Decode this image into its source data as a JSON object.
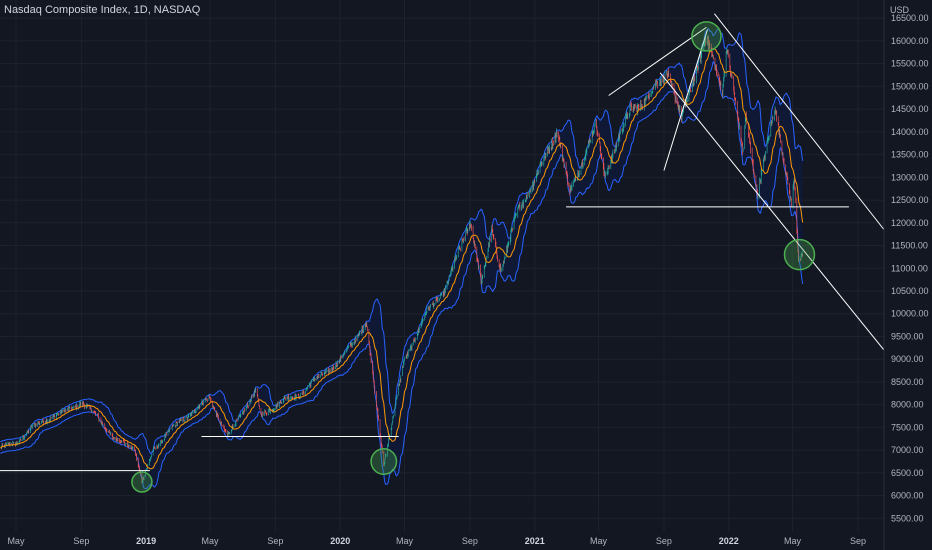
{
  "header": {
    "title": "Nasdaq Composite Index, 1D, NASDAQ"
  },
  "colors": {
    "background": "#131722",
    "grid": "#1e222d",
    "up_candle": "#26a69a",
    "down_candle": "#ef5350",
    "bands": "#2962ff",
    "band_fill": "#0f1a3a",
    "ma": "#ff9800",
    "drawing": "#ffffff",
    "highlight_circle": "#4caf50"
  },
  "chart_data": {
    "type": "line",
    "y_axis": {
      "unit": "USD",
      "ylim": [
        5200,
        16900
      ],
      "ticks": [
        5500,
        6000,
        6500,
        7000,
        7500,
        8000,
        8500,
        9000,
        9500,
        10000,
        10500,
        11000,
        11500,
        12000,
        12500,
        13000,
        13500,
        14000,
        14500,
        15000,
        15500,
        16000,
        16500
      ],
      "tick_labels": [
        "5500.00",
        "6000.00",
        "6500.00",
        "7000.00",
        "7500.00",
        "8000.00",
        "8500.00",
        "9000.00",
        "9500.00",
        "10000.00",
        "10500.00",
        "11000.00",
        "11500.00",
        "12000.00",
        "12500.00",
        "13000.00",
        "13500.00",
        "14000.00",
        "14500.00",
        "15000.00",
        "15500.00",
        "16000.00",
        "16500.00"
      ]
    },
    "x_axis": {
      "range": [
        "2018-04-01",
        "2022-10-20"
      ],
      "ticks": [
        {
          "date": "2018-05-01",
          "label": "May",
          "bold": false
        },
        {
          "date": "2018-09-01",
          "label": "Sep",
          "bold": false
        },
        {
          "date": "2019-01-01",
          "label": "2019",
          "bold": true
        },
        {
          "date": "2019-05-01",
          "label": "May",
          "bold": false
        },
        {
          "date": "2019-09-01",
          "label": "Sep",
          "bold": false
        },
        {
          "date": "2020-01-01",
          "label": "2020",
          "bold": true
        },
        {
          "date": "2020-05-01",
          "label": "May",
          "bold": false
        },
        {
          "date": "2020-09-01",
          "label": "Sep",
          "bold": false
        },
        {
          "date": "2021-01-01",
          "label": "2021",
          "bold": true
        },
        {
          "date": "2021-05-01",
          "label": "May",
          "bold": false
        },
        {
          "date": "2021-09-01",
          "label": "Sep",
          "bold": false
        },
        {
          "date": "2022-01-01",
          "label": "2022",
          "bold": true
        },
        {
          "date": "2022-05-01",
          "label": "May",
          "bold": false
        },
        {
          "date": "2022-09-01",
          "label": "Sep",
          "bold": false
        }
      ]
    },
    "grid": true,
    "series": [
      {
        "points": [
          [
            "2018-04-01",
            7050
          ],
          [
            "2018-05-01",
            7150
          ],
          [
            "2018-06-01",
            7500
          ],
          [
            "2018-07-01",
            7700
          ],
          [
            "2018-08-01",
            7850
          ],
          [
            "2018-09-01",
            8050
          ],
          [
            "2018-10-01",
            7750
          ],
          [
            "2018-11-01",
            7250
          ],
          [
            "2018-12-10",
            7050
          ],
          [
            "2018-12-24",
            6300
          ],
          [
            "2019-01-15",
            7000
          ],
          [
            "2019-02-15",
            7450
          ],
          [
            "2019-03-15",
            7700
          ],
          [
            "2019-04-30",
            8150
          ],
          [
            "2019-06-03",
            7300
          ],
          [
            "2019-07-26",
            8300
          ],
          [
            "2019-08-05",
            7750
          ],
          [
            "2019-09-15",
            8100
          ],
          [
            "2019-10-15",
            8200
          ],
          [
            "2019-11-15",
            8550
          ],
          [
            "2019-12-31",
            8950
          ],
          [
            "2020-02-19",
            9800
          ],
          [
            "2020-03-23",
            6700
          ],
          [
            "2020-04-30",
            8950
          ],
          [
            "2020-06-10",
            10000
          ],
          [
            "2020-07-15",
            10500
          ],
          [
            "2020-09-02",
            12050
          ],
          [
            "2020-09-23",
            10650
          ],
          [
            "2020-10-12",
            11850
          ],
          [
            "2020-10-30",
            10950
          ],
          [
            "2020-12-01",
            12300
          ],
          [
            "2020-12-31",
            12900
          ],
          [
            "2021-02-12",
            14050
          ],
          [
            "2021-03-08",
            12650
          ],
          [
            "2021-04-26",
            14150
          ],
          [
            "2021-05-12",
            13050
          ],
          [
            "2021-06-30",
            14500
          ],
          [
            "2021-07-30",
            14700
          ],
          [
            "2021-09-07",
            15350
          ],
          [
            "2021-10-04",
            14300
          ],
          [
            "2021-11-19",
            16050
          ],
          [
            "2021-12-20",
            14950
          ],
          [
            "2021-12-28",
            15900
          ],
          [
            "2022-01-27",
            13550
          ],
          [
            "2022-02-02",
            14400
          ],
          [
            "2022-02-24",
            12600
          ],
          [
            "2022-03-29",
            14600
          ],
          [
            "2022-04-15",
            13350
          ],
          [
            "2022-04-29",
            12350
          ],
          [
            "2022-05-04",
            12950
          ],
          [
            "2022-05-12",
            11150
          ],
          [
            "2022-05-20",
            11300
          ]
        ]
      }
    ],
    "annotations": {
      "lines": [
        {
          "from": [
            "2018-04-01",
            6550
          ],
          "to": [
            "2019-01-08",
            6550
          ]
        },
        {
          "from": [
            "2019-04-15",
            7300
          ],
          "to": [
            "2020-04-20",
            7300
          ]
        },
        {
          "from": [
            "2021-03-01",
            12350
          ],
          "to": [
            "2022-08-15",
            12350
          ]
        },
        {
          "from": [
            "2021-05-20",
            14800
          ],
          "to": [
            "2021-11-20",
            16300
          ]
        },
        {
          "from": [
            "2021-09-01",
            13150
          ],
          "to": [
            "2021-11-22",
            16250
          ]
        },
        {
          "from": [
            "2021-08-25",
            15300
          ],
          "to": [
            "2022-10-20",
            9200
          ]
        },
        {
          "from": [
            "2021-12-05",
            16600
          ],
          "to": [
            "2022-10-20",
            11850
          ]
        }
      ],
      "circles": [
        {
          "center": [
            "2018-12-24",
            6300
          ],
          "radius_value": 220
        },
        {
          "center": [
            "2020-03-23",
            6750
          ],
          "radius_value": 280
        },
        {
          "center": [
            "2021-11-20",
            16100
          ],
          "radius_value": 320
        },
        {
          "center": [
            "2022-05-14",
            11300
          ],
          "radius_value": 330
        }
      ]
    }
  }
}
